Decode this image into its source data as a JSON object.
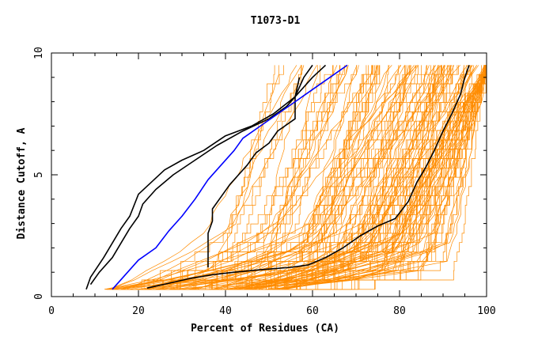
{
  "chart_data": {
    "type": "line",
    "title": "T1073-D1",
    "xlabel": "Percent of Residues (CA)",
    "ylabel": "Distance Cutoff, A",
    "xlim": [
      0,
      100
    ],
    "ylim": [
      0,
      10
    ],
    "x_ticks": [
      "0",
      "20",
      "40",
      "60",
      "80",
      "100"
    ],
    "y_ticks": [
      "0",
      "5",
      "10"
    ],
    "grid": false,
    "legend": "none",
    "colors": {
      "background_models": "#ff8c00",
      "highlight_black": "#000000",
      "highlight_blue": "#0000ff",
      "axes": "#000000"
    },
    "highlight_series": [
      {
        "color": "#000000",
        "x": [
          8,
          9,
          12,
          16,
          18,
          20,
          20,
          23,
          26,
          30,
          35,
          40,
          46,
          51,
          56,
          60,
          63
        ],
        "y": [
          0.3,
          0.8,
          1.6,
          2.8,
          3.3,
          4.2,
          4.2,
          4.7,
          5.2,
          5.6,
          6.0,
          6.6,
          7.0,
          7.5,
          8.2,
          9.0,
          9.5
        ]
      },
      {
        "color": "#000000",
        "x": [
          9,
          11,
          14,
          16,
          18,
          20,
          21,
          24,
          28,
          33,
          38,
          44,
          50,
          54,
          56,
          58,
          60
        ],
        "y": [
          0.5,
          1.0,
          1.6,
          2.2,
          2.8,
          3.3,
          3.8,
          4.4,
          5.0,
          5.6,
          6.2,
          6.8,
          7.3,
          7.8,
          8.2,
          9.0,
          9.5
        ]
      },
      {
        "color": "#000000",
        "x": [
          22,
          27,
          32,
          37,
          42,
          48,
          55,
          59,
          63,
          67,
          71,
          75,
          79,
          82,
          84,
          86,
          88,
          90,
          92,
          94,
          95,
          96
        ],
        "y": [
          0.35,
          0.55,
          0.75,
          0.9,
          1.0,
          1.1,
          1.2,
          1.3,
          1.6,
          2.0,
          2.5,
          2.9,
          3.2,
          3.9,
          4.7,
          5.3,
          6.0,
          6.8,
          7.5,
          8.3,
          9.0,
          9.5
        ]
      },
      {
        "color": "#000000",
        "x": [
          36,
          36,
          36,
          37,
          37,
          39,
          41,
          43,
          45,
          47,
          50,
          52,
          56,
          56,
          57
        ],
        "y": [
          1.2,
          2.0,
          2.6,
          3.1,
          3.6,
          4.1,
          4.6,
          5.0,
          5.4,
          5.9,
          6.3,
          6.8,
          7.3,
          8.2,
          9.0
        ]
      },
      {
        "color": "#0000ff",
        "x": [
          14,
          17,
          20,
          24,
          27,
          30,
          33,
          36,
          39,
          42,
          44,
          48,
          52,
          56,
          60,
          64,
          68
        ],
        "y": [
          0.3,
          0.9,
          1.5,
          2.0,
          2.7,
          3.3,
          4.0,
          4.8,
          5.4,
          6.0,
          6.5,
          7.0,
          7.5,
          8.0,
          8.5,
          9.0,
          9.5
        ]
      }
    ]
  }
}
